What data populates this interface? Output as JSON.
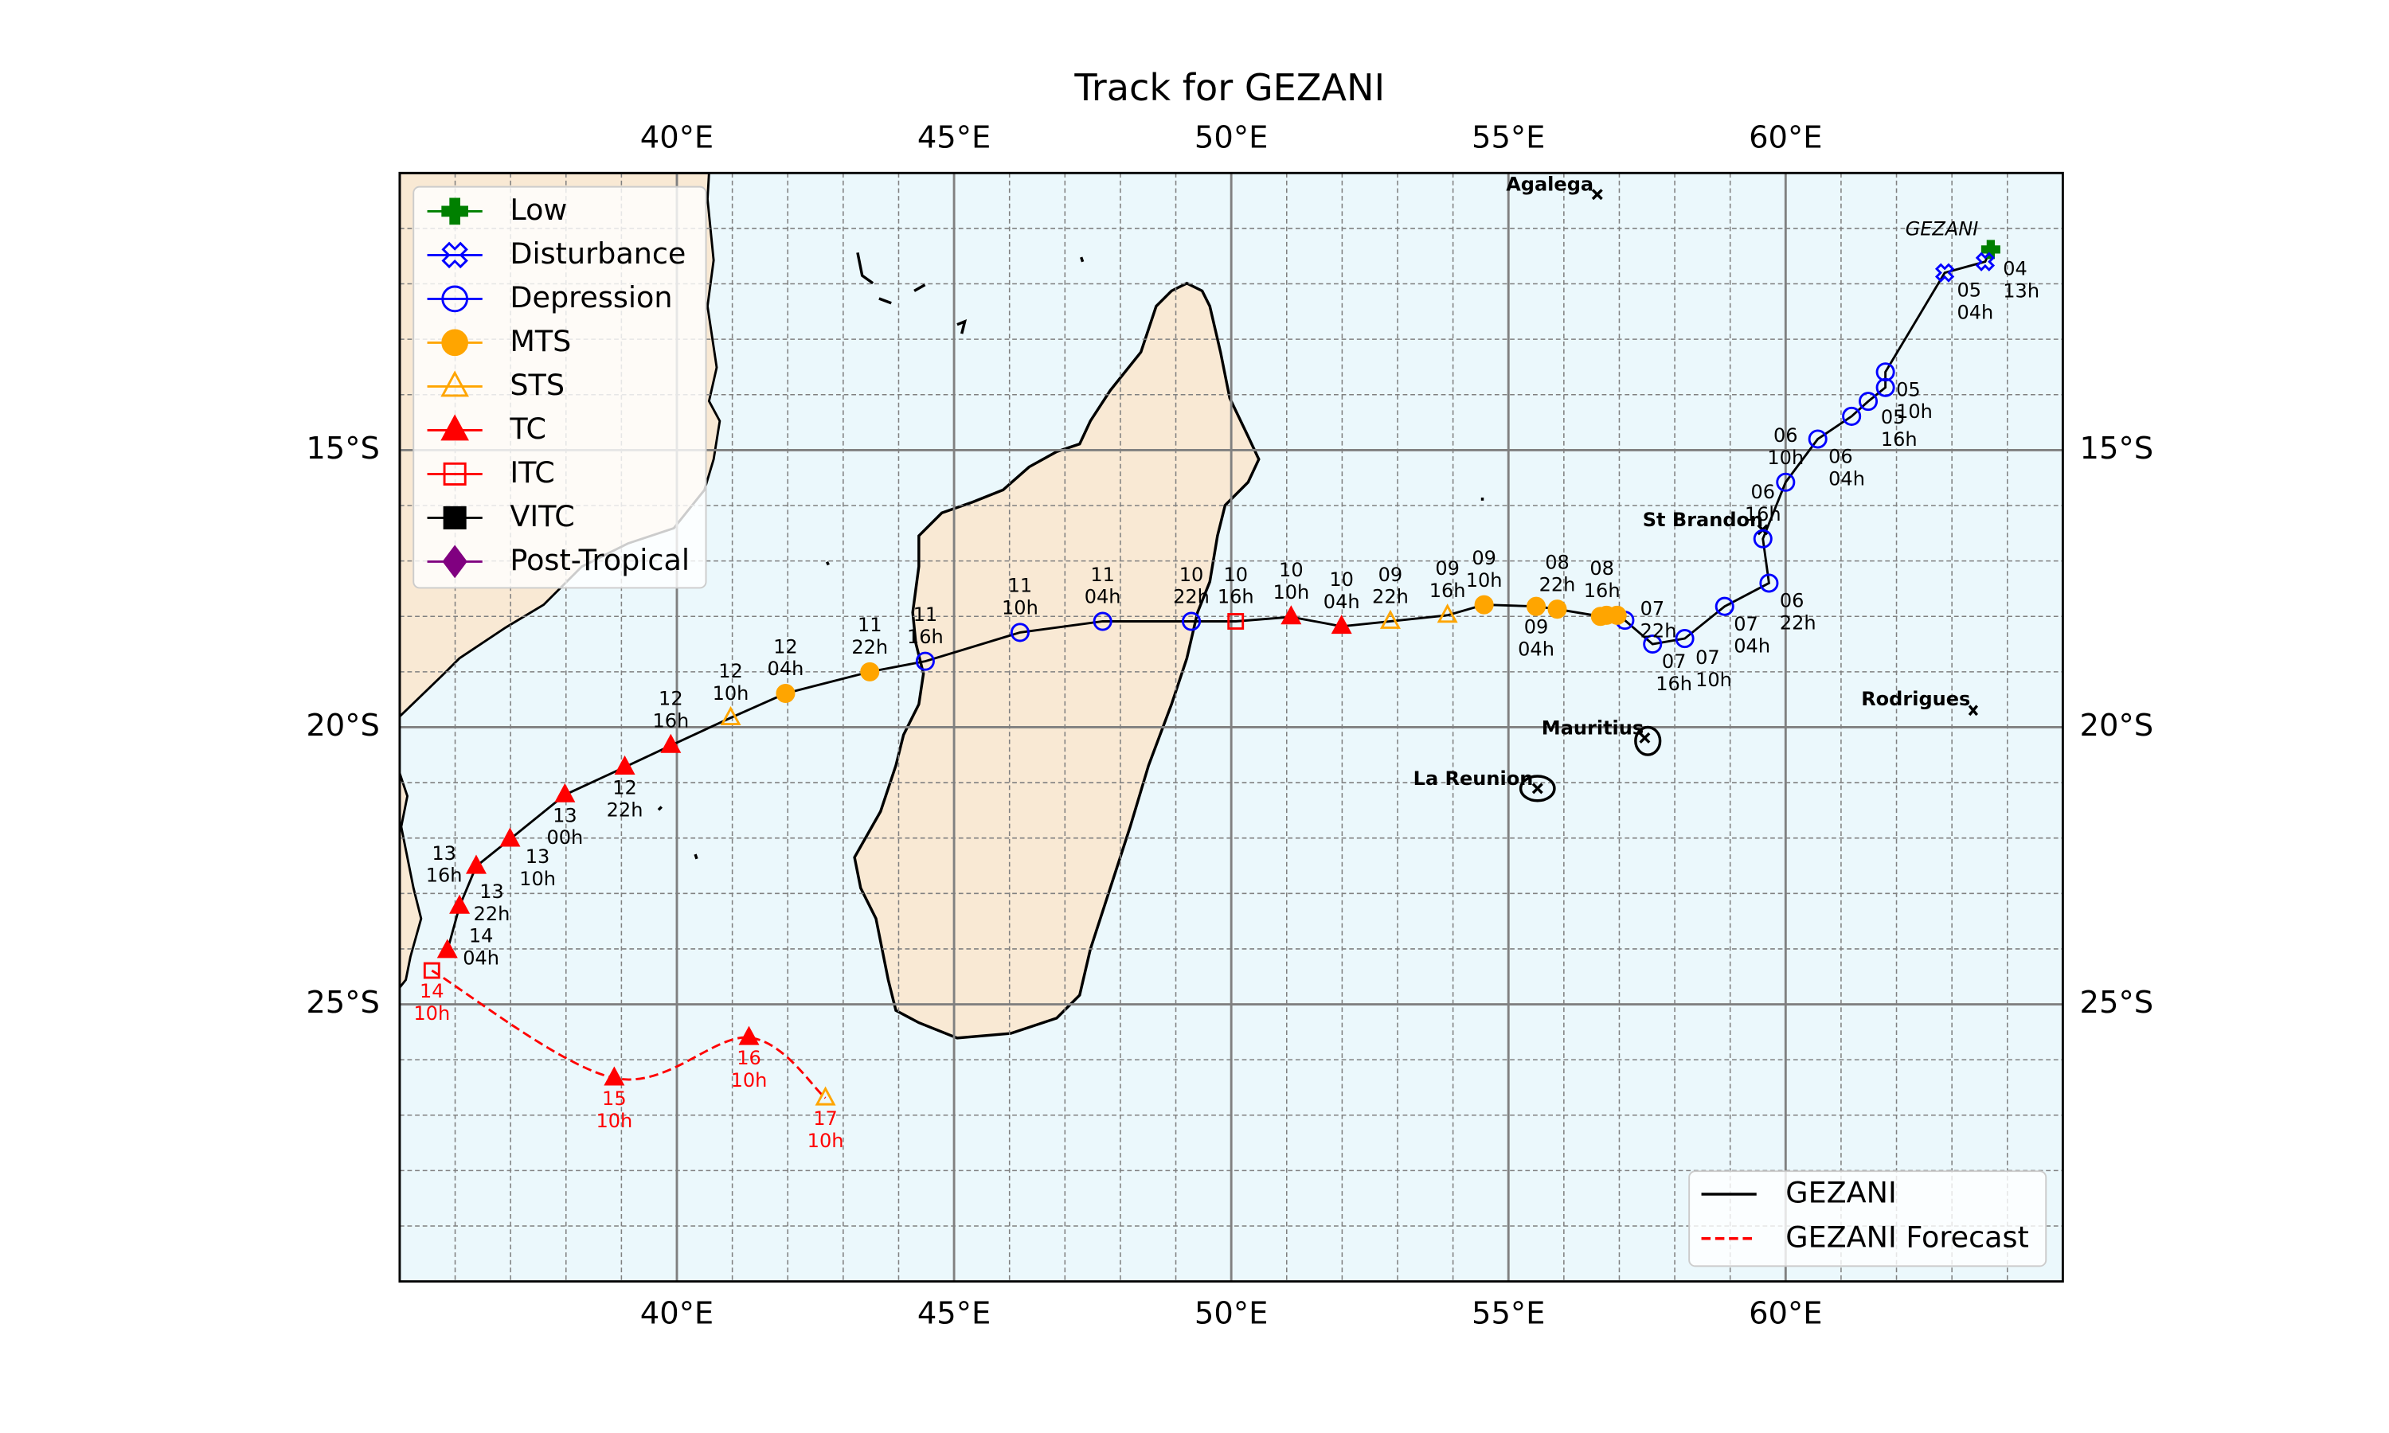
{
  "title": "Track for GEZANI",
  "map": {
    "xlim": [
      35,
      65
    ],
    "ylim": [
      -30,
      -10
    ],
    "xticks": [
      {
        "value": 40,
        "label": "40°E"
      },
      {
        "value": 45,
        "label": "45°E"
      },
      {
        "value": 50,
        "label": "50°E"
      },
      {
        "value": 55,
        "label": "55°E"
      },
      {
        "value": 60,
        "label": "60°E"
      }
    ],
    "yticks": [
      {
        "value": -15,
        "label": "15°S"
      },
      {
        "value": -20,
        "label": "20°S"
      },
      {
        "value": -25,
        "label": "25°S"
      }
    ],
    "grid": true,
    "ocean_color": "#ebf8fc",
    "land_color": "#f9e9d4"
  },
  "legend": {
    "loc": "upper left",
    "stages": [
      {
        "name": "Low",
        "color": "#008000",
        "marker": "plus",
        "filled": true
      },
      {
        "name": "Disturbance",
        "color": "#0000ff",
        "marker": "x",
        "filled": false
      },
      {
        "name": "Depression",
        "color": "#0000ff",
        "marker": "circle",
        "filled": false
      },
      {
        "name": "MTS",
        "color": "#ffa500",
        "marker": "circle",
        "filled": true
      },
      {
        "name": "STS",
        "color": "#ffa500",
        "marker": "triangle",
        "filled": false
      },
      {
        "name": "TC",
        "color": "#ff0000",
        "marker": "triangle",
        "filled": true
      },
      {
        "name": "ITC",
        "color": "#ff0000",
        "marker": "square",
        "filled": false
      },
      {
        "name": "VITC",
        "color": "#000000",
        "marker": "square",
        "filled": true
      },
      {
        "name": "Post-Tropical",
        "color": "#800080",
        "marker": "diamond",
        "filled": true
      }
    ]
  },
  "tracks_legend": {
    "loc": "lower right"
  },
  "tracks": [
    {
      "name": "GEZANI",
      "color": "#000000",
      "linestyle": "solid",
      "label_color": "#000000",
      "points": [
        {
          "lon": 63.7,
          "lat": -11.38,
          "stage": "Low",
          "day": "04",
          "time": "13h"
        },
        {
          "lon": 63.6,
          "lat": -11.6,
          "stage": "Disturbance",
          "day": null,
          "time": null
        },
        {
          "lon": 62.87,
          "lat": -11.8,
          "stage": "Disturbance",
          "day": "05",
          "time": "04h"
        },
        {
          "lon": 61.8,
          "lat": -13.59,
          "stage": "Depression",
          "day": "05",
          "time": "10h"
        },
        {
          "lon": 61.8,
          "lat": -13.87,
          "stage": "Depression",
          "day": "05",
          "time": "16h"
        },
        {
          "lon": 61.49,
          "lat": -14.12,
          "stage": "Depression",
          "day": null,
          "time": null
        },
        {
          "lon": 61.19,
          "lat": -14.39,
          "stage": "Depression",
          "day": null,
          "time": null
        },
        {
          "lon": 60.58,
          "lat": -14.8,
          "stage": "Depression",
          "day": "06",
          "time": "04h"
        },
        {
          "lon": 60.0,
          "lat": -15.58,
          "stage": "Depression",
          "day": "06",
          "time": "10h"
        },
        {
          "lon": 59.59,
          "lat": -16.6,
          "stage": "Depression",
          "day": "06",
          "time": "16h"
        },
        {
          "lon": 59.7,
          "lat": -17.4,
          "stage": "Depression",
          "day": "06",
          "time": "22h"
        },
        {
          "lon": 58.9,
          "lat": -17.82,
          "stage": "Depression",
          "day": "07",
          "time": "04h"
        },
        {
          "lon": 58.18,
          "lat": -18.4,
          "stage": "Depression",
          "day": "07",
          "time": "10h"
        },
        {
          "lon": 57.6,
          "lat": -18.5,
          "stage": "Depression",
          "day": "07",
          "time": "16h"
        },
        {
          "lon": 57.1,
          "lat": -18.07,
          "stage": "Depression",
          "day": "07",
          "time": "22h"
        },
        {
          "lon": 56.96,
          "lat": -17.98,
          "stage": "MTS",
          "day": null,
          "time": null
        },
        {
          "lon": 56.77,
          "lat": -17.98,
          "stage": "MTS",
          "day": "08",
          "time": "16h"
        },
        {
          "lon": 56.66,
          "lat": -18.0,
          "stage": "MTS",
          "day": null,
          "time": null
        },
        {
          "lon": 55.88,
          "lat": -17.87,
          "stage": "MTS",
          "day": "08",
          "time": "22h"
        },
        {
          "lon": 55.5,
          "lat": -17.82,
          "stage": "MTS",
          "day": "09",
          "time": "04h"
        },
        {
          "lon": 54.56,
          "lat": -17.79,
          "stage": "MTS",
          "day": "09",
          "time": "10h"
        },
        {
          "lon": 53.9,
          "lat": -17.98,
          "stage": "STS",
          "day": "09",
          "time": "16h"
        },
        {
          "lon": 52.87,
          "lat": -18.09,
          "stage": "STS",
          "day": "09",
          "time": "22h"
        },
        {
          "lon": 51.99,
          "lat": -18.18,
          "stage": "TC",
          "day": "10",
          "time": "04h"
        },
        {
          "lon": 51.08,
          "lat": -18.01,
          "stage": "TC",
          "day": "10",
          "time": "10h"
        },
        {
          "lon": 50.08,
          "lat": -18.09,
          "stage": "ITC",
          "day": "10",
          "time": "16h"
        },
        {
          "lon": 49.28,
          "lat": -18.09,
          "stage": "Depression",
          "day": "10",
          "time": "22h"
        },
        {
          "lon": 47.68,
          "lat": -18.09,
          "stage": "Depression",
          "day": "11",
          "time": "04h"
        },
        {
          "lon": 46.19,
          "lat": -18.29,
          "stage": "Depression",
          "day": "11",
          "time": "10h"
        },
        {
          "lon": 44.48,
          "lat": -18.81,
          "stage": "Depression",
          "day": "11",
          "time": "16h"
        },
        {
          "lon": 43.48,
          "lat": -19.0,
          "stage": "MTS",
          "day": "11",
          "time": "22h"
        },
        {
          "lon": 41.96,
          "lat": -19.39,
          "stage": "MTS",
          "day": "12",
          "time": "04h"
        },
        {
          "lon": 40.97,
          "lat": -19.83,
          "stage": "STS",
          "day": "12",
          "time": "10h"
        },
        {
          "lon": 39.89,
          "lat": -20.33,
          "stage": "TC",
          "day": "12",
          "time": "16h"
        },
        {
          "lon": 39.06,
          "lat": -20.72,
          "stage": "TC",
          "day": "12",
          "time": "22h"
        },
        {
          "lon": 37.98,
          "lat": -21.22,
          "stage": "TC",
          "day": "13",
          "time": "00h"
        },
        {
          "lon": 36.99,
          "lat": -22.02,
          "stage": "TC",
          "day": "13",
          "time": "10h"
        },
        {
          "lon": 36.38,
          "lat": -22.51,
          "stage": "TC",
          "day": "13",
          "time": "16h"
        },
        {
          "lon": 36.08,
          "lat": -23.23,
          "stage": "TC",
          "day": "13",
          "time": "22h"
        },
        {
          "lon": 35.86,
          "lat": -24.03,
          "stage": "TC",
          "day": "14",
          "time": "04h"
        }
      ]
    },
    {
      "name": "GEZANI Forecast",
      "color": "#ff0000",
      "linestyle": "dashed",
      "label_color": "#ff0000",
      "points": [
        {
          "lon": 35.58,
          "lat": -24.39,
          "stage": "ITC",
          "day": "14",
          "time": "10h"
        },
        {
          "lon": 38.87,
          "lat": -26.33,
          "stage": "TC",
          "day": "15",
          "time": "10h"
        },
        {
          "lon": 41.3,
          "lat": -25.6,
          "stage": "TC",
          "day": "16",
          "time": "10h"
        },
        {
          "lon": 42.68,
          "lat": -26.69,
          "stage": "STS",
          "day": "17",
          "time": "10h"
        }
      ]
    }
  ],
  "places": [
    "Agalega",
    "St Brandon",
    "Mauritius",
    "La Reunion",
    "Rodrigues"
  ],
  "storm_label": "GEZANI"
}
